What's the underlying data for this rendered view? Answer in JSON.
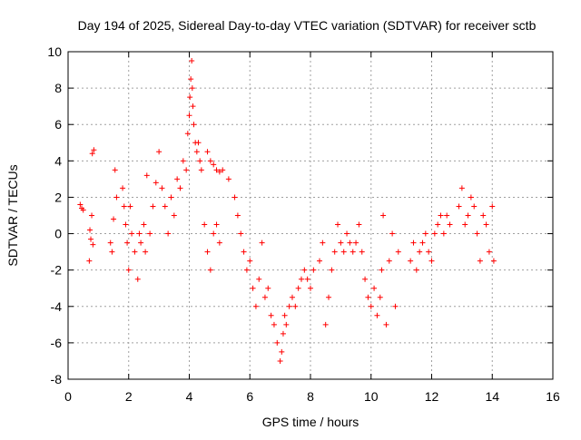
{
  "chart_data": {
    "type": "scatter",
    "title": "Day 194 of 2025, Sidereal Day-to-day VTEC variation (SDTVAR) for receiver sctb",
    "xlabel": "GPS time / hours",
    "ylabel": "SDTVAR / TECUs",
    "xlim": [
      0,
      16
    ],
    "ylim": [
      -8,
      10
    ],
    "xticks": [
      0,
      2,
      4,
      6,
      8,
      10,
      12,
      14,
      16
    ],
    "yticks": [
      -8,
      -6,
      -4,
      -2,
      0,
      2,
      4,
      6,
      8,
      10
    ],
    "grid": true,
    "marker": "+",
    "colors": {
      "series": "#ff0000",
      "grid": "#a0a0a0",
      "axis": "#000000"
    },
    "series": [
      {
        "name": "SDTVAR",
        "x": [
          0.4,
          0.45,
          0.5,
          0.75,
          0.8,
          0.85,
          0.7,
          0.72,
          0.78,
          0.82,
          1.4,
          1.5,
          1.55,
          1.6,
          1.45,
          1.8,
          1.85,
          1.9,
          1.95,
          2.0,
          2.05,
          2.1,
          2.2,
          2.3,
          2.35,
          2.4,
          2.5,
          2.55,
          2.6,
          2.7,
          2.8,
          2.9,
          3.0,
          3.1,
          3.2,
          3.3,
          3.4,
          3.5,
          3.6,
          3.7,
          3.8,
          3.9,
          3.95,
          4.0,
          4.02,
          4.05,
          4.08,
          4.1,
          4.12,
          4.15,
          4.2,
          4.25,
          4.3,
          4.35,
          4.4,
          4.5,
          4.6,
          4.7,
          4.8,
          4.9,
          5.0,
          4.6,
          4.7,
          4.8,
          4.9,
          5.0,
          5.1,
          5.3,
          5.5,
          5.6,
          5.7,
          5.8,
          5.9,
          6.0,
          6.1,
          6.2,
          6.3,
          6.4,
          6.5,
          6.6,
          6.7,
          6.8,
          6.9,
          7.0,
          7.05,
          7.1,
          7.15,
          7.2,
          7.3,
          7.4,
          7.5,
          7.6,
          7.7,
          7.8,
          7.9,
          8.0,
          8.1,
          8.3,
          8.4,
          8.5,
          8.6,
          8.7,
          8.8,
          8.9,
          9.0,
          9.1,
          9.2,
          9.3,
          9.4,
          9.5,
          9.6,
          9.7,
          9.8,
          9.9,
          10.0,
          10.1,
          10.2,
          10.3,
          10.35,
          10.4,
          10.5,
          10.6,
          10.7,
          10.8,
          10.9,
          11.3,
          11.4,
          11.5,
          11.6,
          11.7,
          11.8,
          11.9,
          12.0,
          12.1,
          12.2,
          12.3,
          12.4,
          12.5,
          12.6,
          12.9,
          13.0,
          13.1,
          13.2,
          13.3,
          13.4,
          13.5,
          13.6,
          13.7,
          13.8,
          13.9,
          14.0,
          14.05
        ],
        "y": [
          1.6,
          1.4,
          1.3,
          -0.3,
          4.4,
          4.6,
          -1.5,
          0.2,
          1.0,
          -0.6,
          -0.5,
          0.8,
          3.5,
          2.0,
          -1.0,
          2.5,
          1.5,
          0.5,
          -0.5,
          -2.0,
          1.5,
          0.0,
          -1.0,
          -2.5,
          0.0,
          -0.5,
          0.5,
          -1.0,
          3.2,
          0.0,
          1.5,
          2.8,
          4.5,
          2.5,
          1.5,
          0.0,
          2.0,
          1.0,
          3.0,
          2.5,
          4.0,
          3.5,
          5.5,
          6.5,
          7.5,
          8.5,
          9.5,
          8.0,
          7.0,
          6.0,
          5.0,
          4.5,
          5.0,
          4.0,
          3.5,
          0.5,
          -1.0,
          -2.0,
          0.0,
          0.5,
          -0.5,
          4.5,
          4.0,
          3.8,
          3.5,
          3.4,
          3.5,
          3.0,
          2.0,
          1.0,
          0.0,
          -1.0,
          -2.0,
          -1.5,
          -3.0,
          -4.0,
          -2.5,
          -0.5,
          -3.5,
          -3.0,
          -4.5,
          -5.0,
          -6.0,
          -7.0,
          -6.5,
          -5.5,
          -4.5,
          -5.0,
          -4.0,
          -3.5,
          -4.0,
          -3.0,
          -2.5,
          -2.0,
          -2.5,
          -3.0,
          -2.0,
          -1.5,
          -0.5,
          -5.0,
          -3.5,
          -2.0,
          -1.0,
          0.5,
          -0.5,
          -1.0,
          0.0,
          -0.5,
          -1.0,
          -0.5,
          0.5,
          -1.0,
          -2.5,
          -3.5,
          -4.0,
          -3.0,
          -4.5,
          -3.5,
          -2.0,
          1.0,
          -5.0,
          -1.5,
          0.0,
          -4.0,
          -1.0,
          -1.5,
          -0.5,
          -2.0,
          -1.0,
          -0.5,
          0.0,
          -1.0,
          -1.5,
          0.0,
          0.5,
          1.0,
          0.0,
          1.0,
          0.5,
          1.5,
          2.5,
          0.5,
          1.0,
          2.0,
          1.5,
          0.0,
          -1.5,
          1.0,
          0.5,
          -1.0,
          1.5,
          -1.5
        ]
      }
    ]
  }
}
